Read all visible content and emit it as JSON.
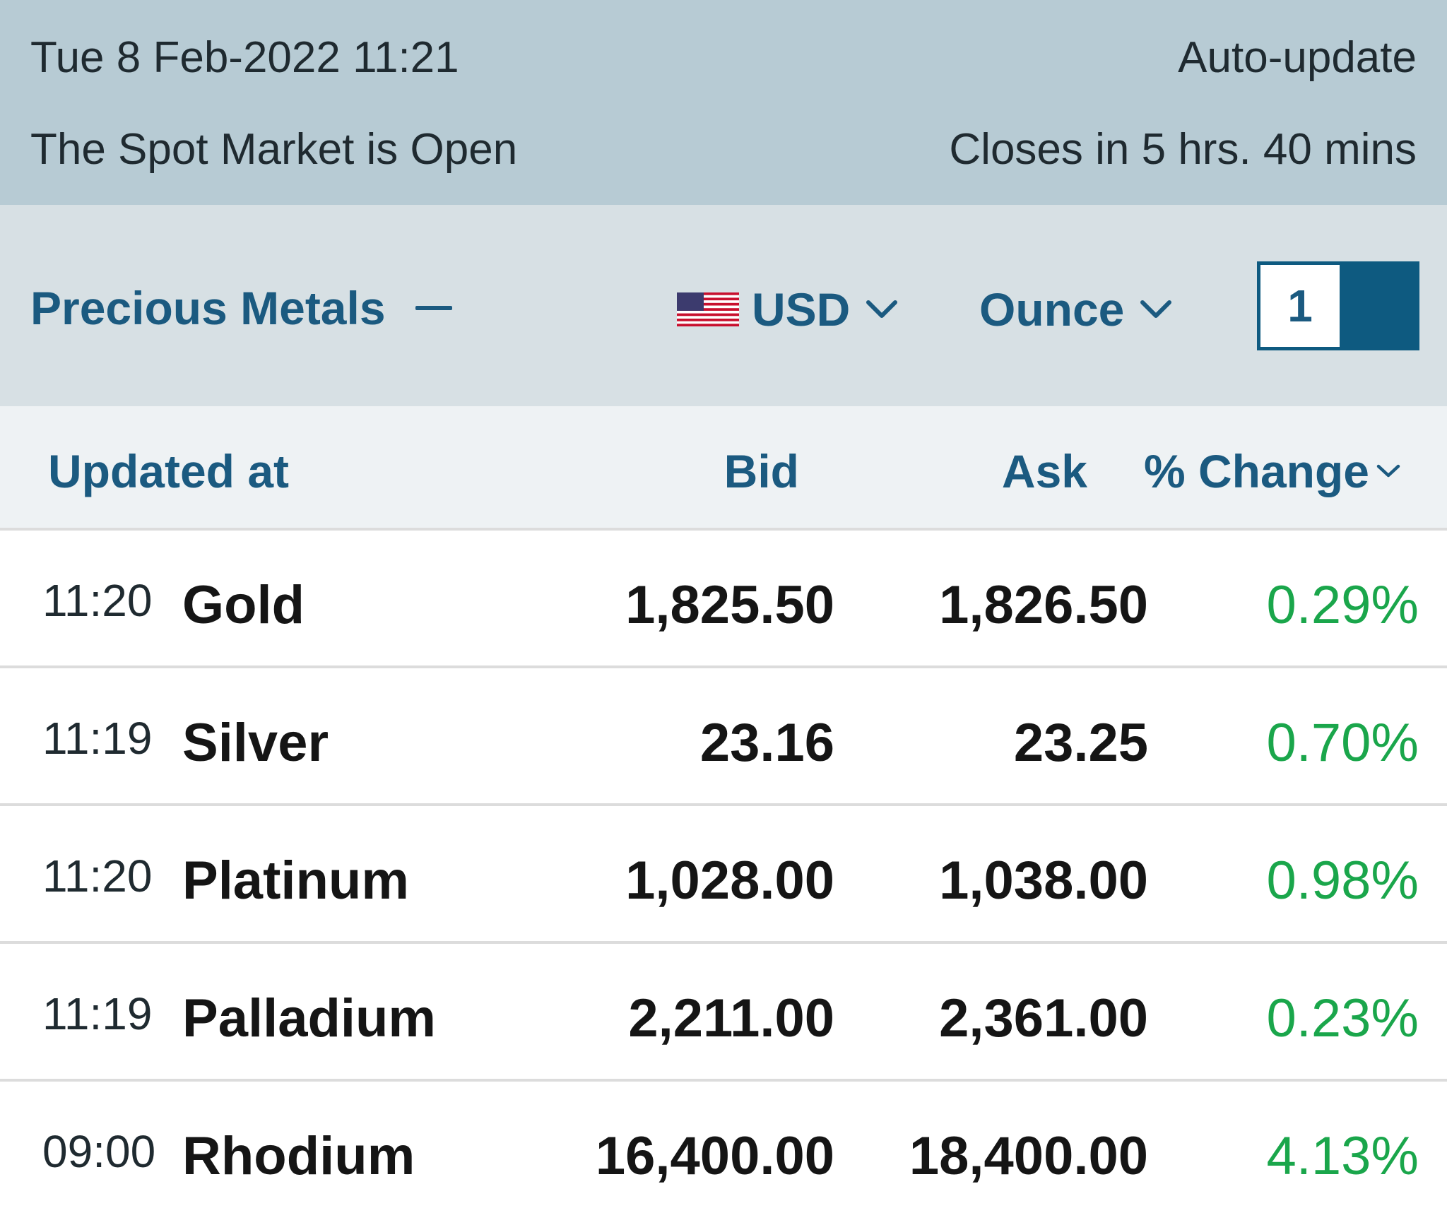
{
  "status": {
    "datetime": "Tue 8 Feb-2022 11:21",
    "auto_update": "Auto-update",
    "market_status": "The Spot Market is Open",
    "closes_in": "Closes in 5 hrs. 40 mins"
  },
  "toolbar": {
    "category": "Precious Metals",
    "category_icon": "minus-icon",
    "currency": "USD",
    "currency_flag": "us-flag-icon",
    "unit": "Ounce",
    "quantity": "1"
  },
  "columns": {
    "updated_at": "Updated at",
    "bid": "Bid",
    "ask": "Ask",
    "change": "% Change"
  },
  "colors": {
    "header_bg": "#b7cbd4",
    "toolbar_bg": "#d7e0e4",
    "accent": "#1b5a80",
    "positive": "#1aa64b"
  },
  "rows": [
    {
      "time": "11:20",
      "metal": "Gold",
      "bid": "1,825.50",
      "ask": "1,826.50",
      "change": "0.29%"
    },
    {
      "time": "11:19",
      "metal": "Silver",
      "bid": "23.16",
      "ask": "23.25",
      "change": "0.70%"
    },
    {
      "time": "11:20",
      "metal": "Platinum",
      "bid": "1,028.00",
      "ask": "1,038.00",
      "change": "0.98%"
    },
    {
      "time": "11:19",
      "metal": "Palladium",
      "bid": "2,211.00",
      "ask": "2,361.00",
      "change": "0.23%"
    },
    {
      "time": "09:00",
      "metal": "Rhodium",
      "bid": "16,400.00",
      "ask": "18,400.00",
      "change": "4.13%"
    }
  ]
}
